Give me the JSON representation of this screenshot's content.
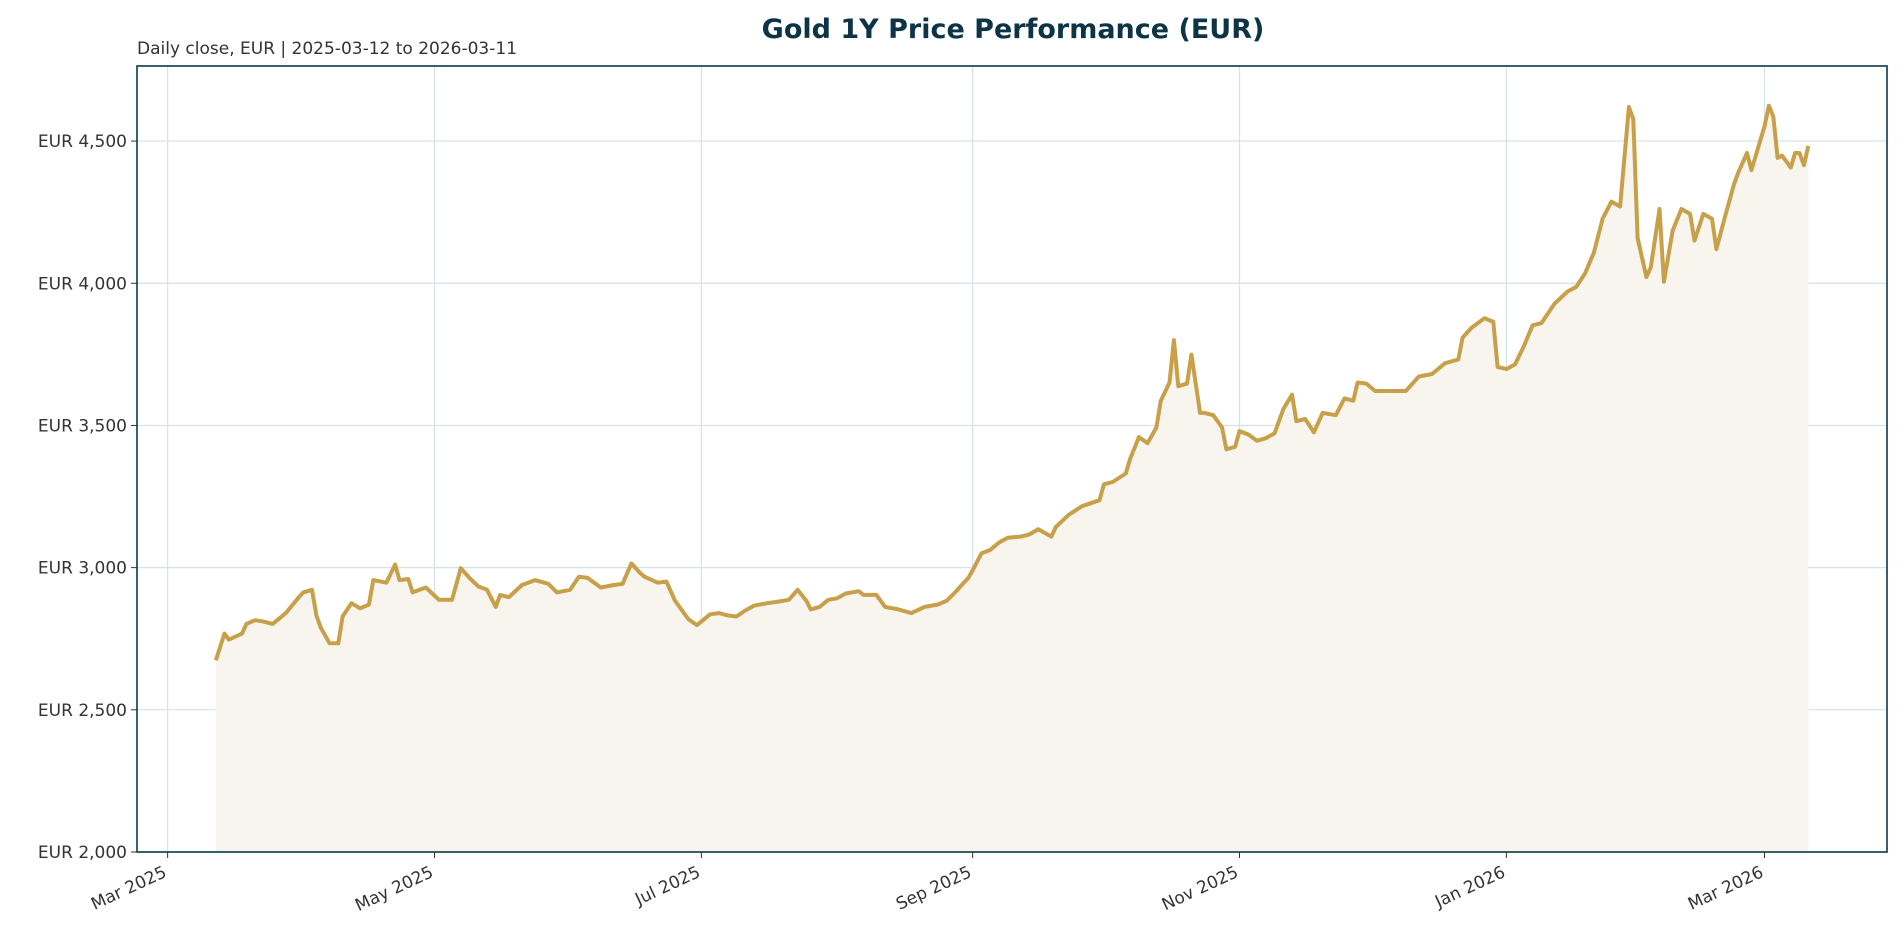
{
  "chart_data": {
    "type": "area",
    "title": "Gold 1Y Price Performance (EUR)",
    "subtitle": "Daily close, EUR | 2025-03-12 to 2026-03-11",
    "xlabel": "",
    "ylabel": "",
    "xlim": [
      "2025-02-22",
      "2026-03-29"
    ],
    "ylim": [
      2000,
      4764
    ],
    "grid": true,
    "legend": "none",
    "colors": {
      "line": "#C9A04A",
      "fill": "#F8F5EE",
      "grid": "#D3E3EA",
      "frame": "#0B3A4A",
      "title": "#0D3446"
    },
    "x_ticks": [
      {
        "date": "2025-03-01",
        "label": "Mar 2025"
      },
      {
        "date": "2025-05-01",
        "label": "May 2025"
      },
      {
        "date": "2025-07-01",
        "label": "Jul 2025"
      },
      {
        "date": "2025-09-01",
        "label": "Sep 2025"
      },
      {
        "date": "2025-11-01",
        "label": "Nov 2025"
      },
      {
        "date": "2026-01-01",
        "label": "Jan 2026"
      },
      {
        "date": "2026-03-01",
        "label": "Mar 2026"
      }
    ],
    "y_ticks": [
      {
        "value": 2000,
        "label": "EUR 2,000"
      },
      {
        "value": 2500,
        "label": "EUR 2,500"
      },
      {
        "value": 3000,
        "label": "EUR 3,000"
      },
      {
        "value": 3500,
        "label": "EUR 3,500"
      },
      {
        "value": 4000,
        "label": "EUR 4,000"
      },
      {
        "value": 4500,
        "label": "EUR 4,500"
      }
    ],
    "x": [
      "2025-03-12",
      "2025-03-14",
      "2025-03-15",
      "2025-03-18",
      "2025-03-19",
      "2025-03-21",
      "2025-03-23",
      "2025-03-25",
      "2025-03-28",
      "2025-03-31",
      "2025-04-01",
      "2025-04-03",
      "2025-04-04",
      "2025-04-05",
      "2025-04-07",
      "2025-04-09",
      "2025-04-10",
      "2025-04-12",
      "2025-04-14",
      "2025-04-16",
      "2025-04-17",
      "2025-04-20",
      "2025-04-22",
      "2025-04-23",
      "2025-04-25",
      "2025-04-26",
      "2025-04-29",
      "2025-05-02",
      "2025-05-05",
      "2025-05-07",
      "2025-05-09",
      "2025-05-11",
      "2025-05-13",
      "2025-05-15",
      "2025-05-16",
      "2025-05-18",
      "2025-05-21",
      "2025-05-24",
      "2025-05-27",
      "2025-05-29",
      "2025-06-01",
      "2025-06-03",
      "2025-06-05",
      "2025-06-08",
      "2025-06-11",
      "2025-06-13",
      "2025-06-15",
      "2025-06-17",
      "2025-06-18",
      "2025-06-21",
      "2025-06-23",
      "2025-06-25",
      "2025-06-26",
      "2025-06-28",
      "2025-06-30",
      "2025-07-03",
      "2025-07-05",
      "2025-07-07",
      "2025-07-09",
      "2025-07-11",
      "2025-07-13",
      "2025-07-16",
      "2025-07-18",
      "2025-07-21",
      "2025-07-23",
      "2025-07-25",
      "2025-07-26",
      "2025-07-28",
      "2025-07-30",
      "2025-08-01",
      "2025-08-03",
      "2025-08-06",
      "2025-08-07",
      "2025-08-10",
      "2025-08-12",
      "2025-08-15",
      "2025-08-18",
      "2025-08-21",
      "2025-08-24",
      "2025-08-26",
      "2025-08-28",
      "2025-08-31",
      "2025-09-01",
      "2025-09-03",
      "2025-09-05",
      "2025-09-07",
      "2025-09-09",
      "2025-09-12",
      "2025-09-14",
      "2025-09-16",
      "2025-09-19",
      "2025-09-20",
      "2025-09-23",
      "2025-09-26",
      "2025-09-30",
      "2025-10-01",
      "2025-10-03",
      "2025-10-06",
      "2025-10-07",
      "2025-10-09",
      "2025-10-11",
      "2025-10-13",
      "2025-10-14",
      "2025-10-16",
      "2025-10-17",
      "2025-10-18",
      "2025-10-20",
      "2025-10-21",
      "2025-10-23",
      "2025-10-24",
      "2025-10-26",
      "2025-10-28",
      "2025-10-29",
      "2025-10-31",
      "2025-11-01",
      "2025-11-03",
      "2025-11-05",
      "2025-11-07",
      "2025-11-09",
      "2025-11-11",
      "2025-11-13",
      "2025-11-14",
      "2025-11-16",
      "2025-11-18",
      "2025-11-20",
      "2025-11-23",
      "2025-11-25",
      "2025-11-27",
      "2025-11-28",
      "2025-11-30",
      "2025-12-02",
      "2025-12-06",
      "2025-12-09",
      "2025-12-12",
      "2025-12-15",
      "2025-12-18",
      "2025-12-21",
      "2025-12-22",
      "2025-12-24",
      "2025-12-27",
      "2025-12-29",
      "2025-12-30",
      "2026-01-01",
      "2026-01-03",
      "2026-01-05",
      "2026-01-07",
      "2026-01-09",
      "2026-01-12",
      "2026-01-15",
      "2026-01-17",
      "2026-01-19",
      "2026-01-21",
      "2026-01-23",
      "2026-01-25",
      "2026-01-27",
      "2026-01-29",
      "2026-01-30",
      "2026-01-31",
      "2026-02-02",
      "2026-02-03",
      "2026-02-05",
      "2026-02-06",
      "2026-02-08",
      "2026-02-10",
      "2026-02-12",
      "2026-02-13",
      "2026-02-15",
      "2026-02-17",
      "2026-02-18",
      "2026-02-20",
      "2026-02-22",
      "2026-02-23",
      "2026-02-25",
      "2026-02-26",
      "2026-02-27",
      "2026-03-01",
      "2026-03-02",
      "2026-03-03",
      "2026-03-04",
      "2026-03-05",
      "2026-03-07",
      "2026-03-08",
      "2026-03-09",
      "2026-03-10",
      "2026-03-11"
    ],
    "series": [
      {
        "values": [
          2674,
          2768,
          2747,
          2768,
          2802,
          2815,
          2810,
          2802,
          2840,
          2896,
          2913,
          2922,
          2832,
          2789,
          2734,
          2734,
          2828,
          2875,
          2857,
          2870,
          2956,
          2947,
          3011,
          2956,
          2960,
          2913,
          2930,
          2887,
          2887,
          2998,
          2964,
          2934,
          2922,
          2862,
          2904,
          2896,
          2939,
          2956,
          2943,
          2913,
          2922,
          2968,
          2964,
          2930,
          2939,
          2943,
          3015,
          2981,
          2968,
          2947,
          2951,
          2883,
          2862,
          2819,
          2798,
          2836,
          2840,
          2832,
          2828,
          2849,
          2866,
          2875,
          2879,
          2887,
          2922,
          2883,
          2853,
          2862,
          2887,
          2892,
          2909,
          2917,
          2904,
          2904,
          2862,
          2853,
          2840,
          2862,
          2870,
          2883,
          2913,
          2964,
          2990,
          3050,
          3062,
          3088,
          3105,
          3109,
          3117,
          3135,
          3109,
          3143,
          3186,
          3216,
          3237,
          3293,
          3301,
          3331,
          3382,
          3459,
          3438,
          3493,
          3587,
          3651,
          3800,
          3638,
          3647,
          3749,
          3544,
          3544,
          3536,
          3493,
          3416,
          3425,
          3480,
          3468,
          3446,
          3455,
          3472,
          3557,
          3608,
          3515,
          3523,
          3476,
          3544,
          3536,
          3595,
          3587,
          3651,
          3647,
          3621,
          3621,
          3621,
          3672,
          3681,
          3719,
          3732,
          3809,
          3843,
          3877,
          3864,
          3706,
          3698,
          3715,
          3779,
          3852,
          3860,
          3928,
          3971,
          3988,
          4035,
          4108,
          4227,
          4287,
          4270,
          4620,
          4577,
          4159,
          4022,
          4056,
          4261,
          4005,
          4184,
          4261,
          4244,
          4150,
          4244,
          4227,
          4120,
          4235,
          4347,
          4390,
          4458,
          4398,
          4449,
          4552,
          4624,
          4586,
          4441,
          4449,
          4407,
          4458,
          4458,
          4415,
          4483
        ]
      }
    ]
  }
}
